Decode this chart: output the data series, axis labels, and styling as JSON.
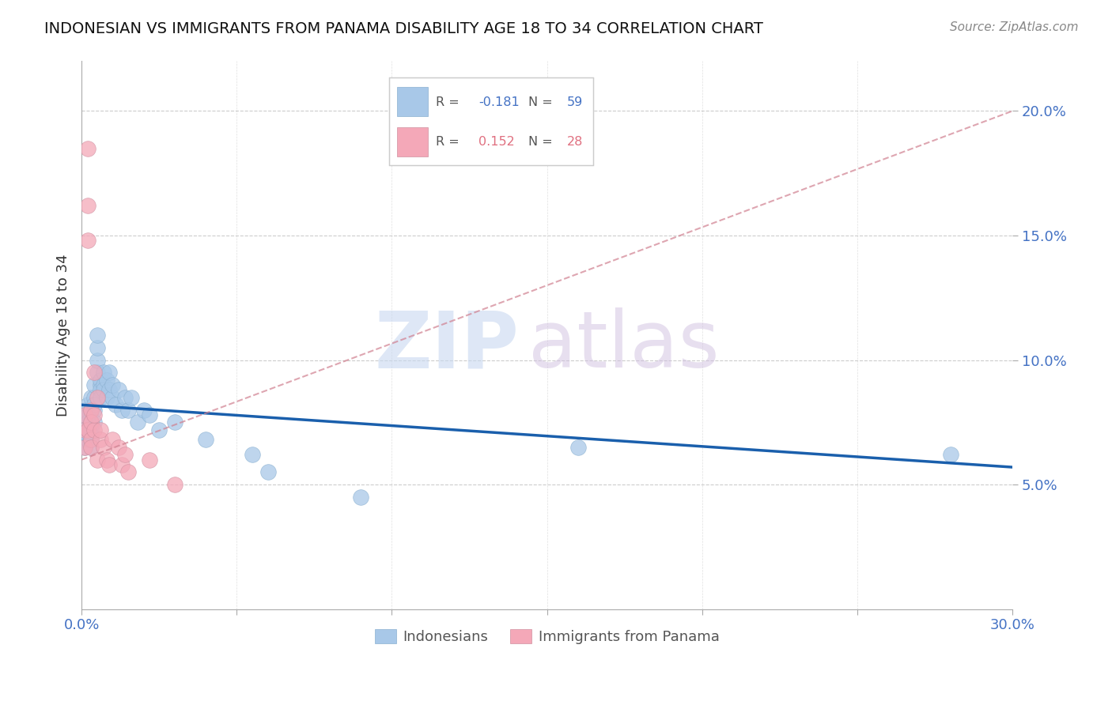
{
  "title": "INDONESIAN VS IMMIGRANTS FROM PANAMA DISABILITY AGE 18 TO 34 CORRELATION CHART",
  "source": "Source: ZipAtlas.com",
  "ylabel": "Disability Age 18 to 34",
  "yticks": [
    0.05,
    0.1,
    0.15,
    0.2
  ],
  "ytick_labels": [
    "5.0%",
    "10.0%",
    "15.0%",
    "20.0%"
  ],
  "xlim": [
    0.0,
    0.3
  ],
  "ylim": [
    0.0,
    0.22
  ],
  "R_blue": -0.181,
  "N_blue": 59,
  "R_pink": 0.152,
  "N_pink": 28,
  "blue_color": "#a8c8e8",
  "pink_color": "#f4a8b8",
  "blue_line_color": "#1a5fac",
  "pink_line_color": "#d08090",
  "indonesians_x": [
    0.001,
    0.001,
    0.001,
    0.001,
    0.001,
    0.001,
    0.002,
    0.002,
    0.002,
    0.002,
    0.002,
    0.002,
    0.002,
    0.003,
    0.003,
    0.003,
    0.003,
    0.003,
    0.003,
    0.003,
    0.004,
    0.004,
    0.004,
    0.004,
    0.004,
    0.005,
    0.005,
    0.005,
    0.005,
    0.006,
    0.006,
    0.006,
    0.006,
    0.007,
    0.007,
    0.007,
    0.008,
    0.008,
    0.009,
    0.009,
    0.01,
    0.01,
    0.011,
    0.012,
    0.013,
    0.014,
    0.015,
    0.016,
    0.018,
    0.02,
    0.022,
    0.025,
    0.03,
    0.04,
    0.055,
    0.06,
    0.09,
    0.16,
    0.28
  ],
  "indonesians_y": [
    0.072,
    0.076,
    0.08,
    0.072,
    0.068,
    0.065,
    0.078,
    0.082,
    0.072,
    0.068,
    0.073,
    0.07,
    0.075,
    0.075,
    0.08,
    0.085,
    0.072,
    0.068,
    0.065,
    0.07,
    0.085,
    0.09,
    0.08,
    0.075,
    0.082,
    0.095,
    0.1,
    0.105,
    0.11,
    0.09,
    0.092,
    0.088,
    0.085,
    0.095,
    0.09,
    0.088,
    0.085,
    0.092,
    0.088,
    0.095,
    0.085,
    0.09,
    0.082,
    0.088,
    0.08,
    0.085,
    0.08,
    0.085,
    0.075,
    0.08,
    0.078,
    0.072,
    0.075,
    0.068,
    0.062,
    0.055,
    0.045,
    0.065,
    0.062
  ],
  "panama_x": [
    0.001,
    0.001,
    0.001,
    0.002,
    0.002,
    0.002,
    0.002,
    0.003,
    0.003,
    0.003,
    0.003,
    0.004,
    0.004,
    0.004,
    0.005,
    0.005,
    0.006,
    0.006,
    0.007,
    0.008,
    0.009,
    0.01,
    0.012,
    0.013,
    0.014,
    0.015,
    0.022,
    0.03
  ],
  "panama_y": [
    0.072,
    0.078,
    0.065,
    0.185,
    0.162,
    0.148,
    0.072,
    0.08,
    0.075,
    0.068,
    0.065,
    0.095,
    0.072,
    0.078,
    0.085,
    0.06,
    0.068,
    0.072,
    0.065,
    0.06,
    0.058,
    0.068,
    0.065,
    0.058,
    0.062,
    0.055,
    0.06,
    0.05
  ],
  "blue_trendline_x": [
    0.0,
    0.3
  ],
  "blue_trendline_y": [
    0.082,
    0.057
  ],
  "pink_trendline_x": [
    0.0,
    0.3
  ],
  "pink_trendline_y": [
    0.06,
    0.2
  ]
}
